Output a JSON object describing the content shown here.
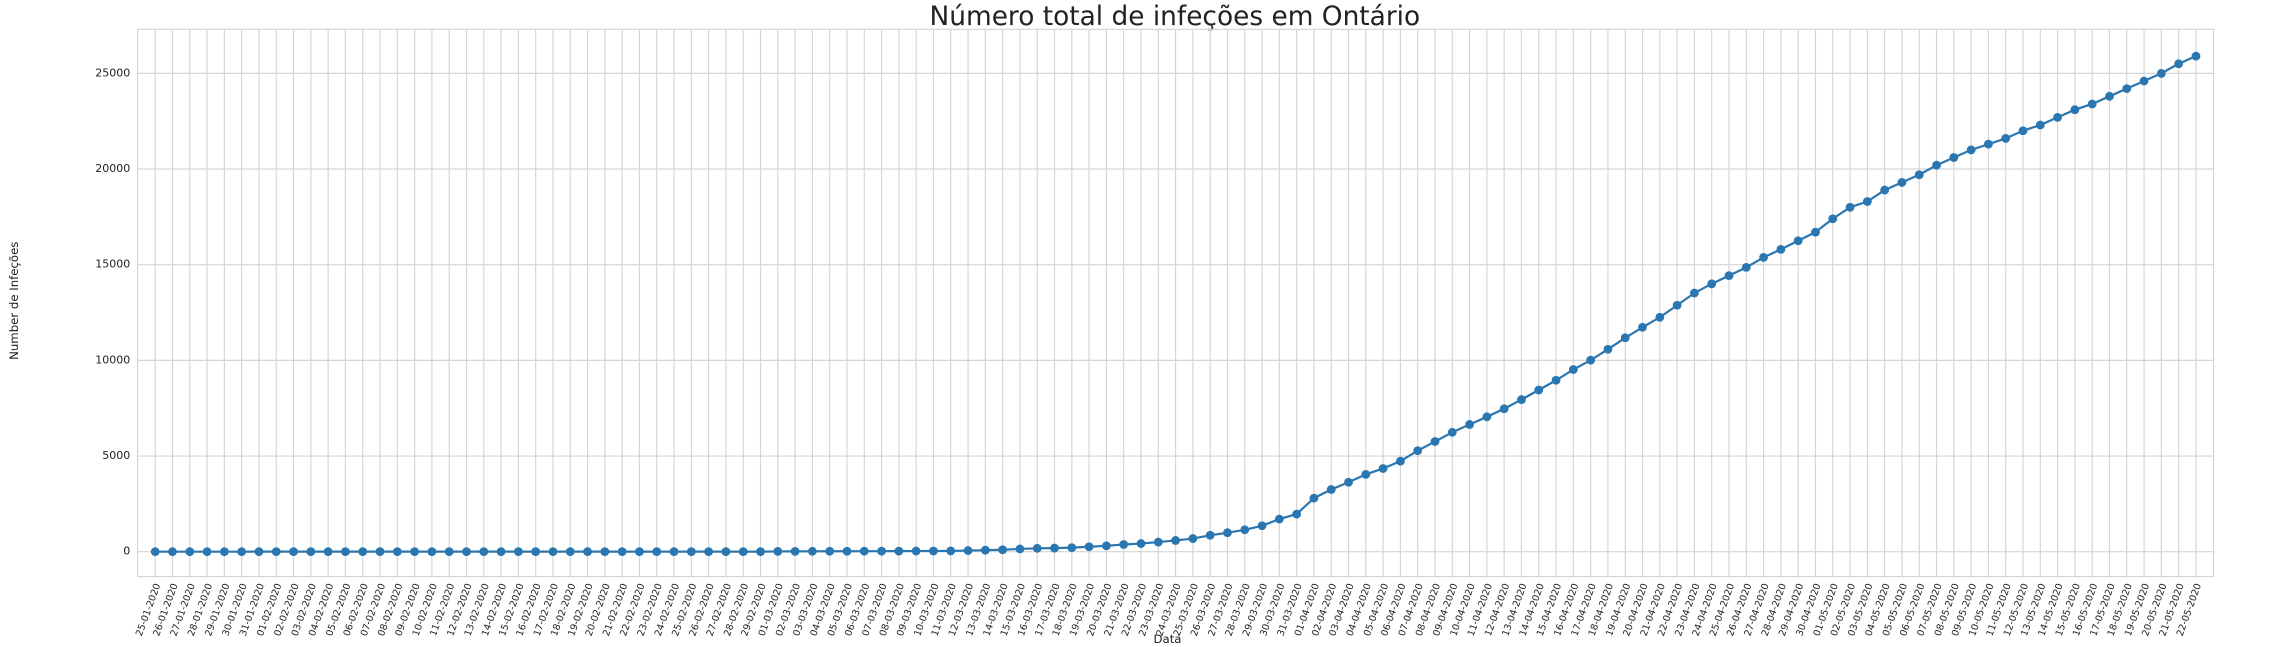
{
  "chart_data": {
    "type": "line",
    "title": "Número total de infeções em Ontário",
    "x_label": "Data",
    "y_label": "Number de Infeções",
    "color": "#2a76b0",
    "grid": true,
    "ylim": [
      -1300,
      27300
    ],
    "yticks": [
      0,
      5000,
      10000,
      15000,
      20000,
      25000
    ],
    "categories": [
      "25-01-2020",
      "26-01-2020",
      "27-01-2020",
      "28-01-2020",
      "29-01-2020",
      "30-01-2020",
      "31-01-2020",
      "01-02-2020",
      "02-02-2020",
      "03-02-2020",
      "04-02-2020",
      "05-02-2020",
      "06-02-2020",
      "07-02-2020",
      "08-02-2020",
      "09-02-2020",
      "10-02-2020",
      "11-02-2020",
      "12-02-2020",
      "13-02-2020",
      "14-02-2020",
      "15-02-2020",
      "16-02-2020",
      "17-02-2020",
      "18-02-2020",
      "19-02-2020",
      "20-02-2020",
      "21-02-2020",
      "22-02-2020",
      "23-02-2020",
      "24-02-2020",
      "25-02-2020",
      "26-02-2020",
      "27-02-2020",
      "28-02-2020",
      "29-02-2020",
      "01-03-2020",
      "02-03-2020",
      "03-03-2020",
      "04-03-2020",
      "05-03-2020",
      "06-03-2020",
      "07-03-2020",
      "08-03-2020",
      "09-03-2020",
      "10-03-2020",
      "11-03-2020",
      "12-03-2020",
      "13-03-2020",
      "14-03-2020",
      "15-03-2020",
      "16-03-2020",
      "17-03-2020",
      "18-03-2020",
      "19-03-2020",
      "20-03-2020",
      "21-03-2020",
      "22-03-2020",
      "23-03-2020",
      "24-03-2020",
      "25-03-2020",
      "26-03-2020",
      "27-03-2020",
      "28-03-2020",
      "29-03-2020",
      "30-03-2020",
      "31-03-2020",
      "01-04-2020",
      "02-04-2020",
      "03-04-2020",
      "04-04-2020",
      "05-04-2020",
      "06-04-2020",
      "07-04-2020",
      "08-04-2020",
      "09-04-2020",
      "10-04-2020",
      "11-04-2020",
      "12-04-2020",
      "13-04-2020",
      "14-04-2020",
      "15-04-2020",
      "16-04-2020",
      "17-04-2020",
      "18-04-2020",
      "19-04-2020",
      "20-04-2020",
      "21-04-2020",
      "22-04-2020",
      "23-04-2020",
      "24-04-2020",
      "25-04-2020",
      "26-04-2020",
      "27-04-2020",
      "28-04-2020",
      "29-04-2020",
      "30-04-2020",
      "01-05-2020",
      "02-05-2020",
      "03-05-2020",
      "04-05-2020",
      "05-05-2020",
      "06-05-2020",
      "07-05-2020",
      "08-05-2020",
      "09-05-2020",
      "10-05-2020",
      "11-05-2020",
      "12-05-2020",
      "13-05-2020",
      "14-05-2020",
      "15-05-2020",
      "16-05-2020",
      "17-05-2020",
      "18-05-2020",
      "19-05-2020",
      "20-05-2020",
      "21-05-2020",
      "22-05-2020"
    ],
    "values": [
      1,
      1,
      1,
      1,
      1,
      1,
      3,
      3,
      3,
      3,
      3,
      3,
      3,
      3,
      3,
      3,
      3,
      3,
      3,
      3,
      3,
      3,
      3,
      3,
      3,
      3,
      3,
      3,
      3,
      3,
      3,
      4,
      4,
      5,
      5,
      5,
      15,
      18,
      20,
      22,
      24,
      28,
      28,
      29,
      34,
      36,
      41,
      59,
      79,
      103,
      145,
      177,
      189,
      214,
      258,
      308,
      377,
      425,
      503,
      588,
      688,
      858,
      993,
      1144,
      1355,
      1706,
      1966,
      2800,
      3250,
      3630,
      4040,
      4350,
      4730,
      5280,
      5760,
      6240,
      6650,
      7050,
      7470,
      7950,
      8450,
      8960,
      9520,
      10010,
      10580,
      11180,
      11730,
      12250,
      12880,
      13520,
      14000,
      14430,
      14860,
      15380,
      15800,
      16250,
      16700,
      17400,
      18000,
      18300,
      18900,
      19300,
      19700,
      20200,
      20600,
      21000,
      21300,
      21600,
      22000,
      22300,
      22700,
      23100,
      23400,
      23800,
      24200,
      24600,
      25000,
      25500,
      25900
    ]
  }
}
